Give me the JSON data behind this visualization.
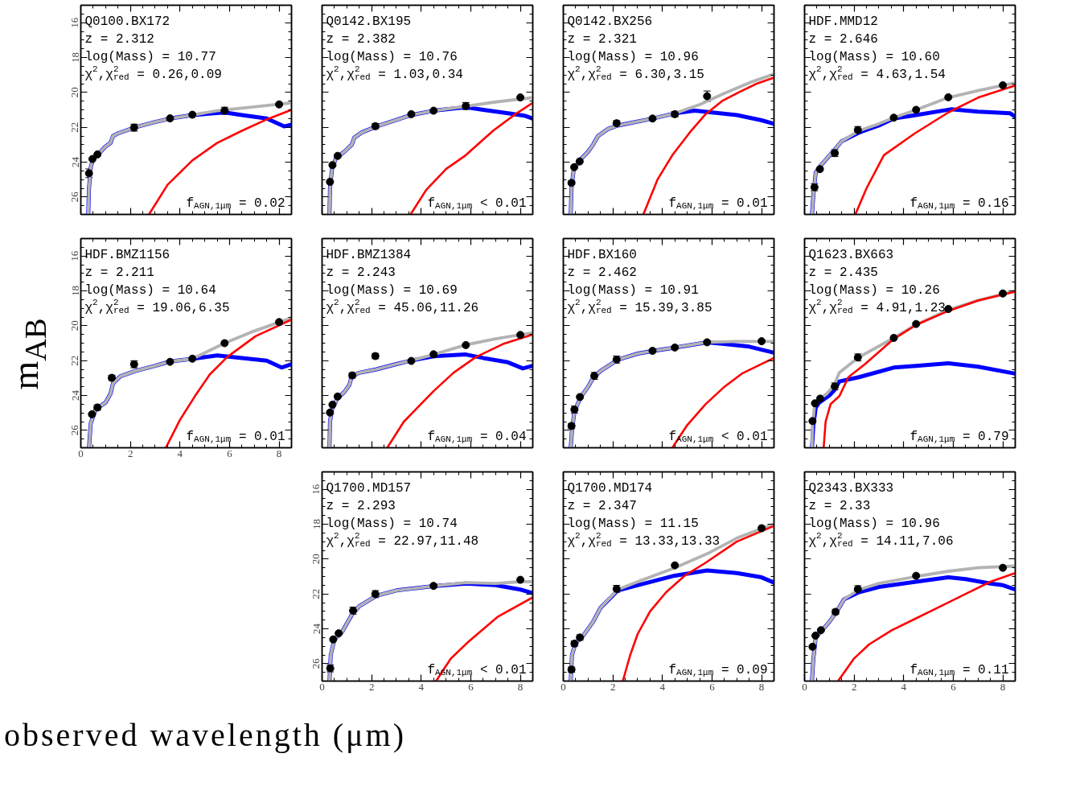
{
  "chart_data": [
    {
      "type": "line",
      "title": "Q0100.BX172",
      "annotations": [
        "z = 2.312",
        "log(Mass) = 10.77",
        "χ$^{2}$,χ$^{2}$$_{red}$ = 0.26,0.09",
        "f$_{AGN,1μm}$ = 0.02"
      ],
      "xlim": [
        0,
        8.5
      ],
      "ylim": [
        27,
        15
      ],
      "xticks": [
        0,
        2,
        4,
        6,
        8
      ],
      "yticks": [
        16,
        18,
        20,
        22,
        24,
        26
      ],
      "tick_labels": "y",
      "series": [
        {
          "color": "#0000ff",
          "x": [
            0.3,
            0.33,
            0.4,
            0.5,
            0.7,
            1.0,
            1.2,
            1.3,
            1.5,
            2.2,
            3.0,
            3.6,
            4.5,
            5.8,
            6.5,
            7.5,
            8.2,
            8.5
          ],
          "values": [
            27,
            25.5,
            24.3,
            23.8,
            23.55,
            23.1,
            22.9,
            22.5,
            22.35,
            22.0,
            21.7,
            21.5,
            21.3,
            21.15,
            21.3,
            21.5,
            21.95,
            21.85
          ]
        },
        {
          "color": "#b3b3b3",
          "x": [
            0.3,
            0.33,
            0.4,
            0.5,
            0.7,
            1.0,
            1.2,
            1.3,
            1.5,
            2.2,
            3.0,
            3.6,
            4.5,
            5.5,
            6.5,
            7.5,
            8.5
          ],
          "values": [
            27,
            25.5,
            24.3,
            23.8,
            23.55,
            23.1,
            22.9,
            22.5,
            22.35,
            22.0,
            21.7,
            21.5,
            21.3,
            21.05,
            20.9,
            20.75,
            20.6
          ]
        },
        {
          "color": "#ff0000",
          "x": [
            2.75,
            3.5,
            4.5,
            5.5,
            6.5,
            7.5,
            8.5
          ],
          "values": [
            27,
            25.3,
            23.9,
            22.9,
            22.2,
            21.55,
            21.0
          ]
        },
        {
          "type": "scatter",
          "marker": "circle",
          "color": "#000000",
          "x": [
            0.33,
            0.47,
            0.67,
            2.15,
            3.6,
            4.5,
            5.8,
            8.0
          ],
          "values": [
            24.64,
            23.82,
            23.56,
            22.02,
            21.49,
            21.28,
            21.05,
            20.69
          ],
          "errors": [
            0.25,
            null,
            null,
            0.2,
            null,
            null,
            0.2,
            null
          ]
        }
      ]
    },
    {
      "type": "line",
      "title": "Q0142.BX195",
      "annotations": [
        "z = 2.382",
        "log(Mass) = 10.76",
        "χ$^{2}$,χ$^{2}$$_{red}$ = 1.03,0.34",
        "f$_{AGN,1μm}$ < 0.01"
      ],
      "xlim": [
        0,
        8.5
      ],
      "ylim": [
        27,
        15
      ],
      "xticks": [
        0,
        2,
        4,
        6,
        8
      ],
      "yticks": [
        16,
        18,
        20,
        22,
        24,
        26
      ],
      "tick_labels": false,
      "series": [
        {
          "color": "#0000ff",
          "x": [
            0.3,
            0.32,
            0.4,
            0.55,
            0.9,
            1.2,
            1.3,
            1.6,
            2.2,
            3.6,
            4.5,
            5.8,
            6.5,
            7.5,
            8.2,
            8.5
          ],
          "values": [
            27,
            25.5,
            24.4,
            23.8,
            23.4,
            23.0,
            22.6,
            22.3,
            21.95,
            21.3,
            21.05,
            20.85,
            21.0,
            21.2,
            21.35,
            21.5
          ]
        },
        {
          "color": "#b3b3b3",
          "x": [
            0.3,
            0.32,
            0.4,
            0.55,
            0.9,
            1.2,
            1.3,
            1.6,
            2.2,
            3.6,
            4.5,
            5.8,
            7.0,
            8.5
          ],
          "values": [
            27,
            25.5,
            24.4,
            23.8,
            23.4,
            23.0,
            22.6,
            22.3,
            21.95,
            21.3,
            21.05,
            20.8,
            20.55,
            20.3
          ]
        },
        {
          "color": "#ff0000",
          "x": [
            3.57,
            4.2,
            5.0,
            5.8,
            6.9,
            7.8,
            8.5
          ],
          "values": [
            27,
            25.6,
            24.4,
            23.6,
            22.2,
            21.25,
            20.6
          ]
        },
        {
          "type": "scatter",
          "marker": "circle",
          "color": "#000000",
          "x": [
            0.32,
            0.42,
            0.63,
            2.15,
            3.6,
            4.5,
            5.8,
            8.0
          ],
          "values": [
            25.13,
            24.17,
            23.64,
            21.94,
            21.25,
            21.05,
            20.78,
            20.29
          ],
          "errors": [
            null,
            null,
            null,
            0.15,
            null,
            null,
            0.2,
            null
          ]
        }
      ]
    },
    {
      "type": "line",
      "title": "Q0142.BX256",
      "annotations": [
        "z = 2.321",
        "log(Mass) = 10.96",
        "χ$^{2}$,χ$^{2}$$_{red}$ = 6.30,3.15",
        "f$_{AGN,1μm}$ = 0.01"
      ],
      "xlim": [
        0,
        8.5
      ],
      "ylim": [
        27,
        15
      ],
      "xticks": [
        0,
        2,
        4,
        6,
        8
      ],
      "yticks": [
        16,
        18,
        20,
        22,
        24,
        26
      ],
      "tick_labels": false,
      "series": [
        {
          "color": "#0000ff",
          "x": [
            0.3,
            0.33,
            0.42,
            0.66,
            1.0,
            1.2,
            1.4,
            1.8,
            2.2,
            3.6,
            4.5,
            5.3,
            6.0,
            7.0,
            8.0,
            8.5
          ],
          "values": [
            27,
            25.5,
            24.4,
            23.9,
            23.4,
            23.0,
            22.5,
            22.1,
            21.9,
            21.5,
            21.2,
            21.05,
            21.15,
            21.3,
            21.6,
            21.8
          ]
        },
        {
          "color": "#b3b3b3",
          "x": [
            0.3,
            0.33,
            0.42,
            0.66,
            1.0,
            1.2,
            1.4,
            1.8,
            2.2,
            3.6,
            4.5,
            5.5,
            6.5,
            7.5,
            8.5
          ],
          "values": [
            27,
            25.5,
            24.4,
            23.9,
            23.4,
            23.0,
            22.5,
            22.1,
            21.9,
            21.5,
            21.2,
            20.7,
            20.05,
            19.45,
            18.95
          ]
        },
        {
          "color": "#ff0000",
          "x": [
            3.23,
            3.8,
            4.4,
            5.1,
            5.74,
            6.4,
            7.07,
            7.8,
            8.5
          ],
          "values": [
            27,
            25.0,
            23.6,
            22.3,
            21.25,
            20.5,
            20.0,
            19.5,
            19.15
          ]
        },
        {
          "type": "scatter",
          "marker": "circle",
          "color": "#000000",
          "x": [
            0.33,
            0.44,
            0.66,
            2.15,
            3.6,
            4.5,
            5.8
          ],
          "values": [
            25.19,
            24.29,
            23.96,
            21.77,
            21.5,
            21.25,
            20.22
          ],
          "errors": [
            0.1,
            null,
            null,
            0.15,
            null,
            0.15,
            0.3
          ]
        }
      ]
    },
    {
      "type": "line",
      "title": "HDF.MMD12",
      "annotations": [
        "z = 2.646",
        "log(Mass) = 10.60",
        "χ$^{2}$,χ$^{2}$$_{red}$ = 4.63,1.54",
        "f$_{AGN,1μm}$ = 0.16"
      ],
      "xlim": [
        0,
        8.5
      ],
      "ylim": [
        27,
        15
      ],
      "xticks": [
        0,
        2,
        4,
        6,
        8
      ],
      "yticks": [
        16,
        18,
        20,
        22,
        24,
        26
      ],
      "tick_labels": false,
      "series": [
        {
          "color": "#0000ff",
          "x": [
            0.3,
            0.35,
            0.45,
            0.65,
            1.2,
            1.5,
            2.2,
            3.0,
            3.6,
            4.5,
            5.9,
            7.0,
            8.3,
            8.5
          ],
          "values": [
            27,
            26.0,
            24.6,
            24.2,
            23.3,
            22.8,
            22.3,
            21.9,
            21.5,
            21.3,
            20.97,
            21.1,
            21.2,
            21.4
          ]
        },
        {
          "color": "#b3b3b3",
          "x": [
            0.3,
            0.35,
            0.45,
            0.65,
            1.2,
            1.5,
            2.2,
            3.0,
            3.6,
            4.5,
            5.8,
            7.0,
            8.5
          ],
          "values": [
            27,
            26.0,
            24.6,
            24.2,
            23.3,
            22.8,
            22.2,
            21.8,
            21.45,
            21.0,
            20.3,
            19.9,
            19.45
          ]
        },
        {
          "color": "#ff0000",
          "x": [
            2.05,
            2.5,
            3.2,
            4.45,
            5.8,
            7.0,
            8.5
          ],
          "values": [
            27,
            25.5,
            23.6,
            22.35,
            21.15,
            20.3,
            19.6
          ]
        },
        {
          "type": "scatter",
          "marker": "circle",
          "color": "#000000",
          "x": [
            0.4,
            0.62,
            1.22,
            2.15,
            3.6,
            4.5,
            5.8,
            8.0
          ],
          "values": [
            25.44,
            24.4,
            23.48,
            22.16,
            21.45,
            21.0,
            20.28,
            19.59
          ],
          "errors": [
            0.2,
            null,
            0.2,
            0.2,
            null,
            null,
            null,
            null
          ]
        }
      ]
    },
    {
      "type": "line",
      "title": "HDF.BMZ1156",
      "ylabel": "m$_{AB}$",
      "annotations": [
        "z = 2.211",
        "log(Mass) = 10.64",
        "χ$^{2}$,χ$^{2}$$_{red}$ = 19.06,6.35",
        "f$_{AGN,1μm}$ = 0.01"
      ],
      "xlim": [
        0,
        8.5
      ],
      "ylim": [
        27,
        15
      ],
      "xticks": [
        0,
        2,
        4,
        6,
        8
      ],
      "yticks": [
        16,
        18,
        20,
        22,
        24,
        26
      ],
      "series": [
        {
          "color": "#0000ff",
          "x": [
            0.33,
            0.4,
            0.6,
            1.0,
            1.2,
            1.3,
            1.6,
            2.2,
            3.0,
            3.6,
            4.5,
            5.5,
            6.5,
            7.5,
            8.1,
            8.5
          ],
          "values": [
            27,
            25.6,
            24.8,
            24.4,
            23.9,
            23.3,
            22.9,
            22.6,
            22.3,
            22.05,
            21.9,
            21.7,
            21.85,
            22.0,
            22.4,
            22.2
          ]
        },
        {
          "color": "#b3b3b3",
          "x": [
            0.33,
            0.4,
            0.6,
            1.0,
            1.2,
            1.3,
            1.6,
            2.2,
            3.0,
            3.6,
            4.5,
            5.8,
            7.0,
            8.5
          ],
          "values": [
            27,
            25.6,
            24.8,
            24.4,
            23.9,
            23.3,
            22.9,
            22.6,
            22.3,
            22.05,
            21.9,
            21.0,
            20.3,
            19.55
          ]
        },
        {
          "color": "#ff0000",
          "x": [
            3.43,
            4.0,
            4.6,
            5.2,
            5.9,
            7.05,
            8.5
          ],
          "values": [
            27,
            25.4,
            24.05,
            22.8,
            21.8,
            20.6,
            19.65
          ]
        },
        {
          "type": "scatter",
          "marker": "circle",
          "color": "#000000",
          "x": [
            0.45,
            0.67,
            1.25,
            2.15,
            3.6,
            4.5,
            5.8,
            8.0
          ],
          "values": [
            25.08,
            24.69,
            22.99,
            22.21,
            22.07,
            21.89,
            21.0,
            19.79
          ],
          "errors": [
            null,
            0.15,
            0.15,
            0.2,
            null,
            null,
            null,
            null
          ]
        }
      ]
    },
    {
      "type": "line",
      "title": "HDF.BMZ1384",
      "annotations": [
        "z = 2.243",
        "log(Mass) = 10.69",
        "χ$^{2}$,χ$^{2}$$_{red}$ = 45.06,11.26",
        "f$_{AGN,1μm}$ = 0.04"
      ],
      "xlim": [
        0,
        8.5
      ],
      "ylim": [
        27,
        15
      ],
      "xticks": [
        0,
        2,
        4,
        6,
        8
      ],
      "yticks": [
        16,
        18,
        20,
        22,
        24,
        26
      ],
      "tick_labels": false,
      "series": [
        {
          "color": "#0000ff",
          "x": [
            0.3,
            0.32,
            0.4,
            0.6,
            0.9,
            1.1,
            1.2,
            1.5,
            2.2,
            3.0,
            3.6,
            4.5,
            5.8,
            6.5,
            7.5,
            8.1,
            8.5
          ],
          "values": [
            27,
            25.5,
            24.8,
            24.2,
            23.8,
            23.4,
            22.9,
            22.7,
            22.5,
            22.2,
            22.0,
            21.75,
            21.65,
            21.85,
            22.1,
            22.45,
            22.3
          ]
        },
        {
          "color": "#b3b3b3",
          "x": [
            0.3,
            0.32,
            0.4,
            0.6,
            0.9,
            1.1,
            1.2,
            1.5,
            2.2,
            3.0,
            3.6,
            4.5,
            5.8,
            7.0,
            8.5
          ],
          "values": [
            27,
            25.5,
            24.8,
            24.2,
            23.8,
            23.4,
            22.9,
            22.7,
            22.5,
            22.2,
            22.0,
            21.65,
            21.1,
            20.75,
            20.4
          ]
        },
        {
          "color": "#ff0000",
          "x": [
            2.63,
            3.3,
            4.5,
            5.3,
            6.2,
            7.3,
            8.5
          ],
          "values": [
            27,
            25.5,
            23.75,
            22.7,
            21.8,
            21.05,
            20.5
          ]
        },
        {
          "type": "scatter",
          "marker": "circle",
          "color": "#000000",
          "x": [
            0.32,
            0.42,
            0.63,
            1.22,
            2.15,
            3.6,
            4.5,
            5.8,
            8.0
          ],
          "values": [
            24.98,
            24.53,
            24.06,
            22.85,
            21.74,
            22.02,
            21.64,
            21.11,
            20.53
          ],
          "errors": [
            null,
            null,
            null,
            0.15,
            0.15,
            null,
            null,
            null,
            null
          ]
        }
      ]
    },
    {
      "type": "line",
      "title": "HDF.BX160",
      "annotations": [
        "z = 2.462",
        "log(Mass) = 10.91",
        "χ$^{2}$,χ$^{2}$$_{red}$ = 15.39,3.85",
        "f$_{AGN,1μm}$ < 0.01"
      ],
      "xlim": [
        0,
        8.5
      ],
      "ylim": [
        27,
        15
      ],
      "xticks": [
        0,
        2,
        4,
        6,
        8
      ],
      "yticks": [
        16,
        18,
        20,
        22,
        24,
        26
      ],
      "tick_labels": false,
      "series": [
        {
          "color": "#0000ff",
          "x": [
            0.3,
            0.35,
            0.45,
            0.7,
            1.0,
            1.2,
            1.5,
            2.2,
            3.0,
            3.6,
            4.5,
            5.8,
            6.5,
            7.5,
            8.5
          ],
          "values": [
            27,
            26.0,
            24.9,
            24.1,
            23.5,
            23.0,
            22.6,
            21.95,
            21.6,
            21.45,
            21.25,
            20.95,
            21.05,
            21.2,
            21.55
          ]
        },
        {
          "color": "#b3b3b3",
          "x": [
            0.3,
            0.35,
            0.45,
            0.7,
            1.0,
            1.2,
            1.5,
            2.2,
            3.0,
            3.6,
            4.5,
            5.8,
            7.0,
            8.5
          ],
          "values": [
            27,
            26.0,
            24.9,
            24.1,
            23.5,
            23.0,
            22.6,
            21.95,
            21.6,
            21.45,
            21.25,
            20.95,
            20.9,
            20.9
          ]
        },
        {
          "color": "#ff0000",
          "x": [
            4.4,
            5.0,
            5.74,
            6.5,
            7.2,
            8.5
          ],
          "values": [
            27,
            25.7,
            24.5,
            23.5,
            22.75,
            21.85
          ]
        },
        {
          "type": "scatter",
          "marker": "circle",
          "color": "#000000",
          "x": [
            0.33,
            0.45,
            0.67,
            1.25,
            2.15,
            3.6,
            4.5,
            5.8,
            8.0
          ],
          "values": [
            25.75,
            24.81,
            24.09,
            22.88,
            21.94,
            21.44,
            21.25,
            20.95,
            20.89
          ],
          "errors": [
            0.15,
            0.2,
            null,
            0.2,
            0.2,
            null,
            null,
            null,
            null
          ]
        }
      ]
    },
    {
      "type": "line",
      "title": "Q1623.BX663",
      "annotations": [
        "z = 2.435",
        "log(Mass) = 10.26",
        "χ$^{2}$,χ$^{2}$$_{red}$ = 4.91,1.23",
        "f$_{AGN,1μm}$ = 0.79"
      ],
      "xlim": [
        0,
        8.5
      ],
      "ylim": [
        27,
        15
      ],
      "xticks": [
        0,
        2,
        4,
        6,
        8
      ],
      "yticks": [
        16,
        18,
        20,
        22,
        24,
        26
      ],
      "tick_labels": false,
      "series": [
        {
          "color": "#0000ff",
          "x": [
            0.3,
            0.35,
            0.45,
            0.6,
            1.0,
            1.2,
            1.4,
            2.2,
            3.6,
            4.5,
            5.8,
            7.0,
            8.5
          ],
          "values": [
            27,
            25.8,
            24.7,
            24.4,
            24.0,
            23.7,
            23.2,
            22.95,
            22.4,
            22.3,
            22.15,
            22.35,
            22.75
          ]
        },
        {
          "color": "#b3b3b3",
          "x": [
            0.3,
            0.32,
            0.4,
            0.6,
            0.9,
            1.2,
            1.4,
            2.2,
            3.6,
            4.5,
            5.8,
            7.0,
            8.5
          ],
          "values": [
            27,
            25.8,
            24.6,
            24.2,
            23.9,
            23.4,
            22.7,
            21.8,
            20.7,
            19.95,
            19.1,
            18.55,
            18.0
          ]
        },
        {
          "color": "#ff0000",
          "x": [
            0.77,
            0.85,
            1.05,
            1.4,
            1.77,
            2.44,
            3.56,
            4.5,
            5.8,
            7.0,
            8.5
          ],
          "values": [
            27,
            25.5,
            24.5,
            24.05,
            22.95,
            22.2,
            20.8,
            19.95,
            19.15,
            18.55,
            18.05
          ]
        },
        {
          "type": "scatter",
          "marker": "circle",
          "color": "#000000",
          "x": [
            0.32,
            0.42,
            0.63,
            1.22,
            2.15,
            3.6,
            4.5,
            5.8,
            8.0
          ],
          "values": [
            25.47,
            24.45,
            24.18,
            23.48,
            21.82,
            20.7,
            19.9,
            19.04,
            18.15
          ],
          "errors": [
            null,
            null,
            null,
            0.2,
            0.2,
            null,
            null,
            null,
            null
          ]
        }
      ]
    },
    {
      "type": "line",
      "title": "Q1700.MD157",
      "annotations": [
        "z = 2.293",
        "log(Mass) = 10.74",
        "χ$^{2}$,χ$^{2}$$_{red}$ = 22.97,11.48",
        "f$_{AGN,1μm}$ < 0.01"
      ],
      "xlim": [
        0,
        8.5
      ],
      "ylim": [
        27,
        15
      ],
      "xticks": [
        0,
        2,
        4,
        6,
        8
      ],
      "yticks": [
        16,
        18,
        20,
        22,
        24,
        26
      ],
      "series": [
        {
          "color": "#0000ff",
          "x": [
            0.3,
            0.35,
            0.5,
            0.8,
            1.2,
            1.5,
            2.2,
            3.0,
            4.5,
            5.8,
            7.0,
            8.0,
            8.5
          ],
          "values": [
            27,
            25.5,
            24.6,
            24.2,
            23.2,
            22.7,
            22.1,
            21.8,
            21.55,
            21.4,
            21.5,
            21.75,
            21.95
          ]
        },
        {
          "color": "#b3b3b3",
          "x": [
            0.3,
            0.35,
            0.5,
            0.8,
            1.2,
            1.5,
            2.2,
            3.0,
            4.5,
            5.8,
            7.0,
            8.0,
            8.5
          ],
          "values": [
            27,
            25.5,
            24.6,
            24.2,
            23.2,
            22.7,
            22.1,
            21.8,
            21.55,
            21.35,
            21.4,
            21.3,
            21.3
          ]
        },
        {
          "color": "#ff0000",
          "x": [
            4.6,
            5.2,
            5.9,
            7.1,
            8.5
          ],
          "values": [
            27,
            25.7,
            24.75,
            23.3,
            22.2
          ]
        },
        {
          "type": "scatter",
          "marker": "circle",
          "color": "#000000",
          "x": [
            0.33,
            0.45,
            0.67,
            1.25,
            2.15,
            4.5,
            8.0
          ],
          "values": [
            26.27,
            24.61,
            24.26,
            22.96,
            22.01,
            21.54,
            21.19
          ],
          "errors": [
            0.2,
            null,
            null,
            0.2,
            0.2,
            null,
            null
          ]
        }
      ]
    },
    {
      "type": "line",
      "title": "Q1700.MD174",
      "xlabel": "observed wavelength (μm)",
      "annotations": [
        "z = 2.347",
        "log(Mass) = 11.15",
        "χ$^{2}$,χ$^{2}$$_{red}$ = 13.33,13.33",
        "f$_{AGN,1μm}$ = 0.09"
      ],
      "xlim": [
        0,
        8.5
      ],
      "ylim": [
        27,
        15
      ],
      "xticks": [
        0,
        2,
        4,
        6,
        8
      ],
      "yticks": [
        16,
        18,
        20,
        22,
        24,
        26
      ],
      "tick_labels": "x",
      "series": [
        {
          "color": "#0000ff",
          "x": [
            0.3,
            0.35,
            0.5,
            0.8,
            1.2,
            1.5,
            2.2,
            3.0,
            4.5,
            5.8,
            7.0,
            8.0,
            8.5
          ],
          "values": [
            27,
            25.5,
            24.8,
            24.4,
            23.6,
            22.8,
            21.8,
            21.5,
            20.95,
            20.65,
            20.8,
            21.05,
            21.35
          ]
        },
        {
          "color": "#b3b3b3",
          "x": [
            0.3,
            0.35,
            0.5,
            0.8,
            1.2,
            1.5,
            2.2,
            3.0,
            4.5,
            5.8,
            7.0,
            8.0,
            8.5
          ],
          "values": [
            27,
            25.5,
            24.8,
            24.4,
            23.6,
            22.8,
            21.75,
            21.3,
            20.5,
            19.7,
            18.8,
            18.25,
            18.0
          ]
        },
        {
          "color": "#ff0000",
          "x": [
            2.4,
            2.7,
            3.0,
            3.5,
            4.15,
            4.9,
            5.7,
            7.0,
            8.5
          ],
          "values": [
            27,
            25.5,
            24.3,
            23.0,
            21.9,
            20.95,
            20.25,
            19.0,
            18.1
          ]
        },
        {
          "type": "scatter",
          "marker": "circle",
          "color": "#000000",
          "x": [
            0.33,
            0.45,
            0.67,
            2.15,
            4.5,
            8.0
          ],
          "values": [
            26.34,
            24.85,
            24.5,
            21.71,
            20.36,
            18.23
          ],
          "errors": [
            0.15,
            0.15,
            0.15,
            0.2,
            null,
            null
          ]
        }
      ]
    },
    {
      "type": "line",
      "title": "Q2343.BX333",
      "annotations": [
        "z = 2.33",
        "log(Mass) = 10.96",
        "χ$^{2}$,χ$^{2}$$_{red}$ = 14.11,7.06",
        "f$_{AGN,1μm}$ = 0.11"
      ],
      "xlim": [
        0,
        8.5
      ],
      "ylim": [
        27,
        15
      ],
      "xticks": [
        0,
        2,
        4,
        6,
        8
      ],
      "yticks": [
        16,
        18,
        20,
        22,
        24,
        26
      ],
      "tick_labels": "x",
      "series": [
        {
          "color": "#0000ff",
          "x": [
            0.3,
            0.35,
            0.45,
            0.7,
            1.0,
            1.3,
            1.6,
            2.2,
            3.0,
            4.5,
            5.8,
            6.5,
            7.5,
            8.0,
            8.5
          ],
          "values": [
            27,
            25.8,
            24.5,
            24.1,
            23.6,
            23.0,
            22.3,
            21.9,
            21.6,
            21.3,
            21.05,
            21.15,
            21.4,
            21.5,
            21.75
          ]
        },
        {
          "color": "#b3b3b3",
          "x": [
            0.3,
            0.35,
            0.45,
            0.7,
            1.0,
            1.3,
            1.6,
            2.2,
            3.0,
            4.5,
            5.8,
            7.0,
            8.5
          ],
          "values": [
            27,
            25.8,
            24.5,
            24.1,
            23.6,
            23.0,
            22.3,
            21.75,
            21.4,
            21.0,
            20.7,
            20.5,
            20.4
          ]
        },
        {
          "color": "#ff0000",
          "x": [
            1.35,
            2.0,
            2.6,
            3.5,
            4.5,
            5.5,
            6.5,
            7.5,
            8.5
          ],
          "values": [
            27,
            25.7,
            24.9,
            24.1,
            23.4,
            22.7,
            22.0,
            21.3,
            20.8
          ]
        },
        {
          "type": "scatter",
          "marker": "circle",
          "color": "#000000",
          "x": [
            0.32,
            0.44,
            0.66,
            1.25,
            2.15,
            4.5,
            8.0
          ],
          "values": [
            25.03,
            24.39,
            24.08,
            23.03,
            21.73,
            20.96,
            20.5
          ],
          "errors": [
            null,
            null,
            null,
            0.15,
            0.2,
            null,
            null
          ]
        }
      ]
    }
  ]
}
